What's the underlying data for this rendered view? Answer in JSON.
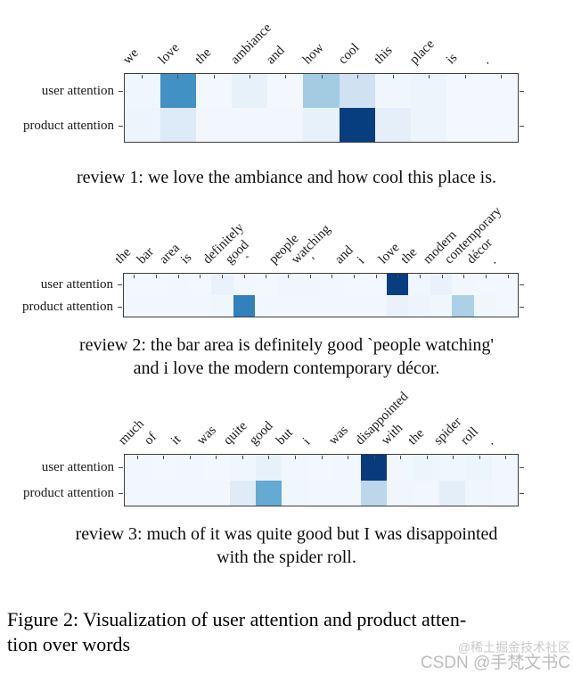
{
  "figure_caption": {
    "lines": [
      "Figure 2: Visualization of user attention and product atten-",
      "tion over words"
    ]
  },
  "watermark": {
    "community": "@稀土掘金技术社区",
    "csdn": "CSDN @手梵文书C"
  },
  "rows": [
    "user attention",
    "product attention"
  ],
  "colors": {
    "colormap": "Blues",
    "min": "#f7fbff",
    "max": "#08306b",
    "plot_border": "#3d3d3d"
  },
  "chart_data": [
    {
      "type": "heatmap",
      "title": "review 1",
      "caption_lines": [
        "review 1: we love the ambiance and how cool this place is."
      ],
      "words": [
        "we",
        "love",
        "the",
        "ambiance",
        "and",
        "how",
        "cool",
        "this",
        "place",
        "is",
        "."
      ],
      "rows": [
        "user attention",
        "product attention"
      ],
      "series": [
        {
          "name": "user attention",
          "values": [
            0.04,
            0.63,
            0.02,
            0.08,
            0.02,
            0.36,
            0.2,
            0.04,
            0.05,
            0.02,
            0.02
          ]
        },
        {
          "name": "product attention",
          "values": [
            0.05,
            0.13,
            0.03,
            0.03,
            0.03,
            0.08,
            0.95,
            0.09,
            0.05,
            0.02,
            0.02
          ]
        }
      ]
    },
    {
      "type": "heatmap",
      "title": "review 2",
      "caption_lines": [
        "review 2: the bar area is definitely good `people watching'",
        "and i love the modern contemporary décor."
      ],
      "words": [
        "the",
        "bar",
        "area",
        "is",
        "definitely",
        "good",
        "`",
        "people",
        "watching",
        "'",
        "and",
        "i",
        "love",
        "the",
        "modern",
        "contemporary",
        "décor",
        "."
      ],
      "rows": [
        "user attention",
        "product attention"
      ],
      "series": [
        {
          "name": "user attention",
          "values": [
            0.02,
            0.02,
            0.03,
            0.02,
            0.07,
            0.03,
            0.02,
            0.04,
            0.04,
            0.03,
            0.02,
            0.02,
            0.95,
            0.04,
            0.07,
            0.03,
            0.02,
            0.02
          ]
        },
        {
          "name": "product attention",
          "values": [
            0.03,
            0.03,
            0.03,
            0.03,
            0.04,
            0.69,
            0.03,
            0.03,
            0.03,
            0.03,
            0.03,
            0.03,
            0.07,
            0.05,
            0.04,
            0.33,
            0.04,
            0.02
          ]
        }
      ]
    },
    {
      "type": "heatmap",
      "title": "review 3",
      "caption_lines": [
        "review 3: much of it was quite good but I was disappointed",
        "with the spider roll."
      ],
      "words": [
        "much",
        "of",
        "it",
        "was",
        "quite",
        "good",
        "but",
        "i",
        "was",
        "disappointed",
        "with",
        "the",
        "spider",
        "roll",
        "."
      ],
      "rows": [
        "user attention",
        "product attention"
      ],
      "series": [
        {
          "name": "user attention",
          "values": [
            0.03,
            0.02,
            0.03,
            0.02,
            0.04,
            0.08,
            0.03,
            0.02,
            0.03,
            0.96,
            0.03,
            0.05,
            0.04,
            0.05,
            0.03
          ]
        },
        {
          "name": "product attention",
          "values": [
            0.03,
            0.03,
            0.03,
            0.03,
            0.12,
            0.52,
            0.04,
            0.03,
            0.03,
            0.28,
            0.04,
            0.03,
            0.1,
            0.04,
            0.03
          ]
        }
      ]
    }
  ]
}
